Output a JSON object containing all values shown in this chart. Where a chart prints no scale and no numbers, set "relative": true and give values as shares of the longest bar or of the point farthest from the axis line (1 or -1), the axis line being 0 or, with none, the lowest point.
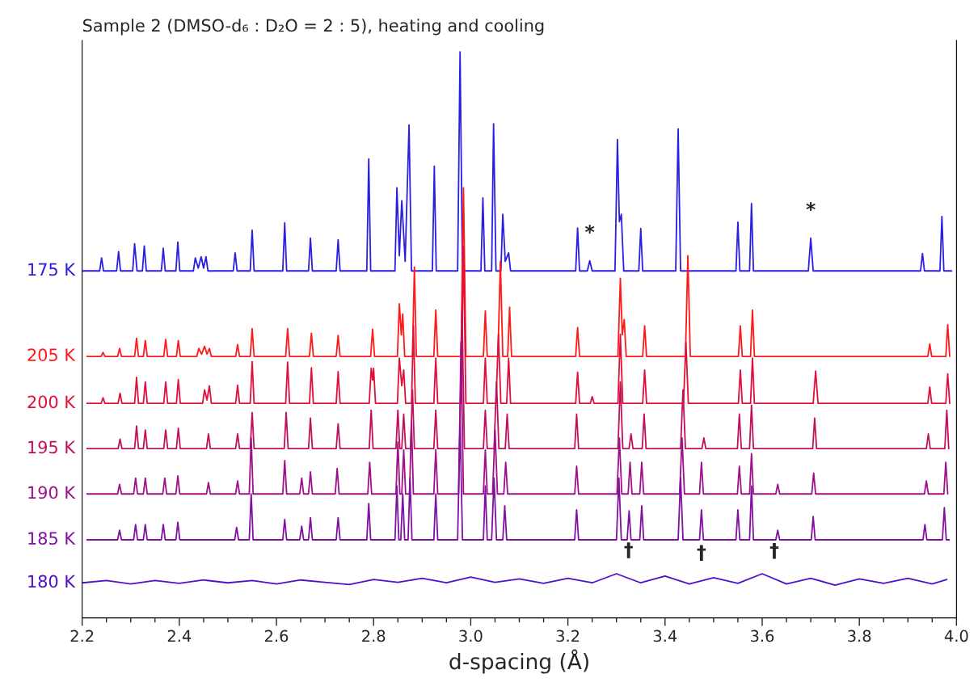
{
  "chart_data": {
    "type": "line",
    "relative": true,
    "title": "Sample 2 (DMSO-d₆ : D₂O = 2 : 5), heating and cooling",
    "xlabel": "d-spacing (Å)",
    "xlim": [
      2.2,
      4.0
    ],
    "xticks": [
      2.2,
      2.4,
      2.6,
      2.8,
      {
        "value": 3,
        "label": "3.0"
      },
      3.2,
      3.4,
      3.6,
      3.8,
      {
        "value": 4,
        "label": "4.0"
      },
      {
        "value": 2.25,
        "label": null
      },
      {
        "value": 2.3,
        "label": null
      },
      {
        "value": 2.35,
        "label": null
      },
      {
        "value": 2.45,
        "label": null
      },
      {
        "value": 2.5,
        "label": null
      },
      {
        "value": 2.55,
        "label": null
      },
      {
        "value": 2.65,
        "label": null
      },
      {
        "value": 2.7,
        "label": null
      },
      {
        "value": 2.75,
        "label": null
      },
      {
        "value": 2.85,
        "label": null
      },
      {
        "value": 2.9,
        "label": null
      },
      {
        "value": 2.95,
        "label": null
      },
      {
        "value": 3.05,
        "label": null
      },
      {
        "value": 3.1,
        "label": null
      },
      {
        "value": 3.15,
        "label": null
      },
      {
        "value": 3.25,
        "label": null
      },
      {
        "value": 3.3,
        "label": null
      },
      {
        "value": 3.35,
        "label": null
      },
      {
        "value": 3.45,
        "label": null
      },
      {
        "value": 3.5,
        "label": null
      },
      {
        "value": 3.55,
        "label": null
      },
      {
        "value": 3.65,
        "label": null
      },
      {
        "value": 3.7,
        "label": null
      },
      {
        "value": 3.75,
        "label": null
      },
      {
        "value": 3.85,
        "label": null
      },
      {
        "value": 3.9,
        "label": null
      },
      {
        "value": 3.95,
        "label": null
      }
    ],
    "series": [
      {
        "name": "175 K",
        "color": "#2a1fe0",
        "x": [
          2.2,
          2.236,
          2.24,
          2.244,
          2.271,
          2.275,
          2.279,
          2.304,
          2.308,
          2.313,
          2.324,
          2.328,
          2.332,
          2.363,
          2.367,
          2.371,
          2.393,
          2.397,
          2.401,
          2.429,
          2.433,
          2.439,
          2.445,
          2.45,
          2.455,
          2.459,
          2.511,
          2.515,
          2.519,
          2.546,
          2.55,
          2.554,
          2.613,
          2.617,
          2.621,
          2.666,
          2.67,
          2.674,
          2.723,
          2.727,
          2.731,
          2.786,
          2.79,
          2.794,
          2.844,
          2.848,
          2.853,
          2.858,
          2.865,
          2.873,
          2.878,
          2.921,
          2.925,
          2.929,
          2.973,
          2.978,
          2.983,
          3.021,
          3.025,
          3.029,
          3.043,
          3.047,
          3.052,
          3.062,
          3.066,
          3.071,
          3.078,
          3.082,
          3.216,
          3.22,
          3.224,
          3.24,
          3.245,
          3.25,
          3.297,
          3.302,
          3.306,
          3.31,
          3.315,
          3.346,
          3.35,
          3.354,
          3.422,
          3.427,
          3.432,
          3.546,
          3.55,
          3.554,
          3.574,
          3.578,
          3.582,
          3.695,
          3.7,
          3.705,
          3.926,
          3.93,
          3.934,
          3.966,
          3.97,
          3.974,
          3.99
        ],
        "values": [
          0.613,
          0.613,
          0.636,
          0.613,
          0.613,
          0.647,
          0.613,
          0.613,
          0.661,
          0.613,
          0.613,
          0.657,
          0.613,
          0.613,
          0.653,
          0.613,
          0.613,
          0.664,
          0.613,
          0.613,
          0.636,
          0.618,
          0.638,
          0.618,
          0.638,
          0.613,
          0.613,
          0.645,
          0.613,
          0.613,
          0.685,
          0.613,
          0.613,
          0.698,
          0.613,
          0.613,
          0.671,
          0.613,
          0.613,
          0.668,
          0.613,
          0.613,
          0.811,
          0.613,
          0.613,
          0.76,
          0.64,
          0.737,
          0.63,
          0.871,
          0.613,
          0.613,
          0.798,
          0.613,
          0.613,
          1.0,
          0.613,
          0.613,
          0.742,
          0.613,
          0.613,
          0.873,
          0.613,
          0.613,
          0.713,
          0.63,
          0.645,
          0.613,
          0.613,
          0.689,
          0.613,
          0.613,
          0.631,
          0.613,
          0.613,
          0.845,
          0.7,
          0.713,
          0.613,
          0.613,
          0.688,
          0.613,
          0.613,
          0.864,
          0.613,
          0.613,
          0.699,
          0.613,
          0.613,
          0.732,
          0.613,
          0.613,
          0.671,
          0.613,
          0.613,
          0.644,
          0.613,
          0.613,
          0.709,
          0.613,
          0.613
        ]
      },
      {
        "name": "205 K",
        "color": "#ff1a1a",
        "x": [
          2.21,
          2.239,
          2.243,
          2.247,
          2.273,
          2.277,
          2.281,
          2.308,
          2.312,
          2.316,
          2.326,
          2.33,
          2.334,
          2.368,
          2.372,
          2.376,
          2.394,
          2.398,
          2.402,
          2.436,
          2.44,
          2.446,
          2.452,
          2.457,
          2.462,
          2.466,
          2.516,
          2.52,
          2.524,
          2.546,
          2.55,
          2.554,
          2.619,
          2.623,
          2.627,
          2.668,
          2.672,
          2.676,
          2.723,
          2.727,
          2.731,
          2.794,
          2.798,
          2.802,
          2.849,
          2.853,
          2.857,
          2.86,
          2.864,
          2.88,
          2.884,
          2.888,
          2.924,
          2.928,
          2.932,
          2.98,
          2.985,
          2.99,
          3.026,
          3.03,
          3.034,
          3.056,
          3.061,
          3.066,
          3.076,
          3.08,
          3.084,
          3.216,
          3.22,
          3.224,
          3.303,
          3.308,
          3.312,
          3.316,
          3.32,
          3.354,
          3.358,
          3.362,
          3.442,
          3.447,
          3.452,
          3.551,
          3.555,
          3.559,
          3.576,
          3.58,
          3.584,
          3.941,
          3.945,
          3.949,
          3.978,
          3.982,
          3.986
        ],
        "values": [
          0.462,
          0.462,
          0.469,
          0.462,
          0.462,
          0.476,
          0.462,
          0.462,
          0.494,
          0.462,
          0.462,
          0.49,
          0.462,
          0.462,
          0.492,
          0.462,
          0.462,
          0.49,
          0.462,
          0.462,
          0.476,
          0.466,
          0.48,
          0.466,
          0.476,
          0.462,
          0.462,
          0.483,
          0.462,
          0.462,
          0.511,
          0.462,
          0.462,
          0.511,
          0.462,
          0.462,
          0.503,
          0.462,
          0.462,
          0.499,
          0.462,
          0.462,
          0.51,
          0.462,
          0.462,
          0.555,
          0.5,
          0.537,
          0.462,
          0.462,
          0.62,
          0.462,
          0.462,
          0.544,
          0.462,
          0.462,
          0.76,
          0.462,
          0.462,
          0.542,
          0.462,
          0.462,
          0.63,
          0.462,
          0.462,
          0.549,
          0.462,
          0.462,
          0.513,
          0.462,
          0.462,
          0.6,
          0.5,
          0.527,
          0.462,
          0.462,
          0.516,
          0.462,
          0.462,
          0.64,
          0.462,
          0.462,
          0.516,
          0.462,
          0.462,
          0.544,
          0.462,
          0.462,
          0.484,
          0.462,
          0.462,
          0.518,
          0.462
        ]
      },
      {
        "name": "200 K",
        "color": "#e0103a",
        "x": [
          2.21,
          2.239,
          2.243,
          2.247,
          2.274,
          2.278,
          2.282,
          2.308,
          2.312,
          2.316,
          2.326,
          2.33,
          2.334,
          2.368,
          2.372,
          2.376,
          2.394,
          2.398,
          2.402,
          2.448,
          2.452,
          2.457,
          2.462,
          2.466,
          2.516,
          2.52,
          2.524,
          2.546,
          2.55,
          2.554,
          2.619,
          2.623,
          2.627,
          2.668,
          2.672,
          2.676,
          2.723,
          2.727,
          2.731,
          2.791,
          2.795,
          2.798,
          2.8,
          2.804,
          2.849,
          2.853,
          2.858,
          2.862,
          2.866,
          2.878,
          2.882,
          2.886,
          2.924,
          2.928,
          2.932,
          2.98,
          2.985,
          2.99,
          3.026,
          3.03,
          3.034,
          3.052,
          3.057,
          3.062,
          3.074,
          3.078,
          3.082,
          3.216,
          3.22,
          3.224,
          3.246,
          3.25,
          3.254,
          3.303,
          3.308,
          3.313,
          3.354,
          3.358,
          3.362,
          3.438,
          3.443,
          3.448,
          3.551,
          3.555,
          3.559,
          3.576,
          3.58,
          3.584,
          3.705,
          3.71,
          3.715,
          3.941,
          3.945,
          3.949,
          3.978,
          3.982,
          3.986
        ],
        "values": [
          0.379,
          0.379,
          0.389,
          0.379,
          0.379,
          0.397,
          0.379,
          0.379,
          0.425,
          0.379,
          0.379,
          0.417,
          0.379,
          0.379,
          0.417,
          0.379,
          0.379,
          0.421,
          0.379,
          0.379,
          0.403,
          0.385,
          0.41,
          0.379,
          0.379,
          0.411,
          0.379,
          0.379,
          0.453,
          0.379,
          0.379,
          0.452,
          0.379,
          0.379,
          0.442,
          0.379,
          0.379,
          0.435,
          0.379,
          0.379,
          0.441,
          0.42,
          0.441,
          0.379,
          0.379,
          0.459,
          0.41,
          0.438,
          0.379,
          0.379,
          0.516,
          0.379,
          0.379,
          0.459,
          0.379,
          0.379,
          0.657,
          0.379,
          0.379,
          0.459,
          0.379,
          0.379,
          0.501,
          0.379,
          0.379,
          0.459,
          0.379,
          0.379,
          0.434,
          0.379,
          0.379,
          0.391,
          0.379,
          0.379,
          0.501,
          0.379,
          0.379,
          0.438,
          0.379,
          0.379,
          0.487,
          0.379,
          0.379,
          0.438,
          0.379,
          0.379,
          0.459,
          0.379,
          0.379,
          0.436,
          0.379,
          0.379,
          0.408,
          0.379,
          0.379,
          0.431,
          0.379
        ]
      },
      {
        "name": "195 K",
        "color": "#c0105a",
        "x": [
          2.21,
          2.274,
          2.278,
          2.282,
          2.308,
          2.312,
          2.316,
          2.326,
          2.33,
          2.334,
          2.368,
          2.372,
          2.376,
          2.394,
          2.398,
          2.402,
          2.456,
          2.46,
          2.464,
          2.516,
          2.52,
          2.524,
          2.546,
          2.55,
          2.554,
          2.616,
          2.62,
          2.624,
          2.666,
          2.67,
          2.674,
          2.723,
          2.727,
          2.731,
          2.791,
          2.795,
          2.799,
          2.846,
          2.85,
          2.854,
          2.858,
          2.862,
          2.866,
          2.876,
          2.88,
          2.884,
          2.924,
          2.928,
          2.932,
          2.977,
          2.982,
          2.987,
          3.026,
          3.03,
          3.034,
          3.048,
          3.053,
          3.058,
          3.071,
          3.075,
          3.079,
          3.214,
          3.218,
          3.222,
          3.303,
          3.308,
          3.313,
          3.326,
          3.33,
          3.334,
          3.353,
          3.357,
          3.361,
          3.432,
          3.437,
          3.442,
          3.476,
          3.48,
          3.484,
          3.549,
          3.553,
          3.557,
          3.574,
          3.578,
          3.582,
          3.704,
          3.708,
          3.712,
          3.938,
          3.942,
          3.946,
          3.976,
          3.98,
          3.984
        ],
        "values": [
          0.299,
          0.299,
          0.316,
          0.299,
          0.299,
          0.339,
          0.299,
          0.299,
          0.332,
          0.299,
          0.299,
          0.332,
          0.299,
          0.299,
          0.335,
          0.299,
          0.299,
          0.325,
          0.299,
          0.299,
          0.325,
          0.299,
          0.299,
          0.363,
          0.299,
          0.299,
          0.363,
          0.299,
          0.299,
          0.353,
          0.299,
          0.299,
          0.343,
          0.299,
          0.299,
          0.367,
          0.299,
          0.299,
          0.367,
          0.299,
          0.299,
          0.36,
          0.299,
          0.299,
          0.403,
          0.299,
          0.299,
          0.367,
          0.299,
          0.299,
          0.544,
          0.299,
          0.299,
          0.367,
          0.299,
          0.299,
          0.417,
          0.299,
          0.299,
          0.36,
          0.299,
          0.299,
          0.36,
          0.299,
          0.299,
          0.417,
          0.299,
          0.299,
          0.325,
          0.299,
          0.299,
          0.36,
          0.299,
          0.299,
          0.403,
          0.299,
          0.299,
          0.318,
          0.299,
          0.299,
          0.36,
          0.299,
          0.299,
          0.376,
          0.299,
          0.299,
          0.353,
          0.299,
          0.299,
          0.325,
          0.299,
          0.299,
          0.367,
          0.299
        ]
      },
      {
        "name": "190 K",
        "color": "#a0108a",
        "x": [
          2.21,
          2.273,
          2.277,
          2.281,
          2.306,
          2.31,
          2.314,
          2.326,
          2.33,
          2.334,
          2.366,
          2.37,
          2.374,
          2.393,
          2.397,
          2.401,
          2.456,
          2.46,
          2.464,
          2.516,
          2.52,
          2.524,
          2.544,
          2.548,
          2.552,
          2.613,
          2.617,
          2.621,
          2.648,
          2.652,
          2.656,
          2.666,
          2.67,
          2.674,
          2.721,
          2.725,
          2.729,
          2.788,
          2.792,
          2.796,
          2.846,
          2.85,
          2.854,
          2.858,
          2.862,
          2.866,
          2.874,
          2.878,
          2.882,
          2.924,
          2.928,
          2.932,
          2.975,
          2.98,
          2.985,
          3.026,
          3.03,
          3.034,
          3.045,
          3.05,
          3.055,
          3.068,
          3.072,
          3.076,
          3.214,
          3.218,
          3.222,
          3.301,
          3.306,
          3.311,
          3.324,
          3.328,
          3.332,
          3.348,
          3.352,
          3.356,
          3.43,
          3.435,
          3.44,
          3.471,
          3.475,
          3.479,
          3.549,
          3.553,
          3.557,
          3.574,
          3.578,
          3.582,
          3.628,
          3.632,
          3.636,
          3.702,
          3.706,
          3.71,
          3.934,
          3.938,
          3.942,
          3.974,
          3.978,
          3.982
        ],
        "values": [
          0.219,
          0.219,
          0.236,
          0.219,
          0.219,
          0.247,
          0.219,
          0.219,
          0.247,
          0.219,
          0.219,
          0.247,
          0.219,
          0.219,
          0.251,
          0.219,
          0.219,
          0.239,
          0.219,
          0.219,
          0.242,
          0.219,
          0.219,
          0.318,
          0.219,
          0.219,
          0.278,
          0.219,
          0.219,
          0.247,
          0.219,
          0.219,
          0.258,
          0.219,
          0.219,
          0.264,
          0.219,
          0.219,
          0.275,
          0.219,
          0.219,
          0.311,
          0.219,
          0.219,
          0.297,
          0.219,
          0.219,
          0.346,
          0.219,
          0.219,
          0.297,
          0.219,
          0.219,
          0.487,
          0.219,
          0.219,
          0.297,
          0.219,
          0.219,
          0.332,
          0.219,
          0.219,
          0.275,
          0.219,
          0.219,
          0.268,
          0.219,
          0.219,
          0.318,
          0.219,
          0.219,
          0.275,
          0.219,
          0.219,
          0.275,
          0.219,
          0.219,
          0.318,
          0.219,
          0.219,
          0.275,
          0.219,
          0.219,
          0.268,
          0.219,
          0.219,
          0.29,
          0.219,
          0.219,
          0.236,
          0.219,
          0.219,
          0.256,
          0.219,
          0.219,
          0.242,
          0.219,
          0.219,
          0.275,
          0.219
        ]
      },
      {
        "name": "185 K",
        "color": "#8010a0",
        "x": [
          2.21,
          2.273,
          2.277,
          2.281,
          2.306,
          2.31,
          2.314,
          2.326,
          2.33,
          2.334,
          2.363,
          2.367,
          2.371,
          2.393,
          2.397,
          2.401,
          2.514,
          2.518,
          2.522,
          2.544,
          2.548,
          2.552,
          2.613,
          2.617,
          2.621,
          2.648,
          2.652,
          2.656,
          2.666,
          2.67,
          2.674,
          2.723,
          2.727,
          2.731,
          2.786,
          2.79,
          2.794,
          2.844,
          2.848,
          2.852,
          2.856,
          2.86,
          2.864,
          2.871,
          2.875,
          2.879,
          2.924,
          2.928,
          2.932,
          2.973,
          2.978,
          2.983,
          3.026,
          3.03,
          3.034,
          3.043,
          3.048,
          3.053,
          3.066,
          3.07,
          3.074,
          3.214,
          3.218,
          3.222,
          3.3,
          3.305,
          3.31,
          3.322,
          3.326,
          3.33,
          3.348,
          3.352,
          3.356,
          3.427,
          3.432,
          3.437,
          3.471,
          3.475,
          3.479,
          3.546,
          3.55,
          3.554,
          3.574,
          3.578,
          3.582,
          3.628,
          3.632,
          3.636,
          3.701,
          3.705,
          3.709,
          3.931,
          3.935,
          3.939,
          3.971,
          3.975,
          3.979,
          3.985
        ],
        "values": [
          0.138,
          0.138,
          0.155,
          0.138,
          0.138,
          0.165,
          0.138,
          0.138,
          0.165,
          0.138,
          0.138,
          0.165,
          0.138,
          0.138,
          0.169,
          0.138,
          0.138,
          0.16,
          0.138,
          0.138,
          0.219,
          0.138,
          0.138,
          0.174,
          0.138,
          0.138,
          0.162,
          0.138,
          0.138,
          0.177,
          0.138,
          0.138,
          0.177,
          0.138,
          0.138,
          0.202,
          0.138,
          0.138,
          0.233,
          0.138,
          0.138,
          0.219,
          0.138,
          0.138,
          0.247,
          0.138,
          0.138,
          0.219,
          0.138,
          0.138,
          0.346,
          0.138,
          0.138,
          0.233,
          0.138,
          0.138,
          0.247,
          0.138,
          0.138,
          0.198,
          0.138,
          0.138,
          0.191,
          0.138,
          0.138,
          0.247,
          0.138,
          0.138,
          0.189,
          0.138,
          0.138,
          0.198,
          0.138,
          0.138,
          0.247,
          0.138,
          0.138,
          0.191,
          0.138,
          0.138,
          0.191,
          0.138,
          0.138,
          0.233,
          0.138,
          0.138,
          0.155,
          0.138,
          0.138,
          0.179,
          0.138,
          0.138,
          0.165,
          0.138,
          0.138,
          0.195,
          0.138,
          0.138
        ]
      },
      {
        "name": "180 K",
        "color": "#5010c8",
        "x": [
          2.2,
          2.25,
          2.3,
          2.35,
          2.4,
          2.45,
          2.5,
          2.55,
          2.6,
          2.65,
          2.7,
          2.75,
          2.8,
          2.85,
          2.9,
          2.95,
          3.0,
          3.05,
          3.1,
          3.15,
          3.2,
          3.25,
          3.3,
          3.35,
          3.4,
          3.45,
          3.5,
          3.55,
          3.6,
          3.65,
          3.7,
          3.75,
          3.8,
          3.85,
          3.9,
          3.95,
          3.98
        ],
        "values": [
          0.062,
          0.066,
          0.06,
          0.066,
          0.061,
          0.067,
          0.062,
          0.066,
          0.06,
          0.067,
          0.063,
          0.059,
          0.068,
          0.063,
          0.07,
          0.062,
          0.072,
          0.063,
          0.069,
          0.061,
          0.07,
          0.062,
          0.078,
          0.062,
          0.074,
          0.06,
          0.071,
          0.061,
          0.078,
          0.06,
          0.07,
          0.058,
          0.069,
          0.061,
          0.07,
          0.06,
          0.068
        ]
      }
    ],
    "annotations": [
      {
        "text": "*",
        "x": 3.245,
        "y": 0.631
      },
      {
        "text": "*",
        "x": 3.7,
        "y": 0.671
      },
      {
        "text": "†",
        "x": 3.325,
        "y": 0.07
      },
      {
        "text": "†",
        "x": 3.475,
        "y": 0.0655
      },
      {
        "text": "†",
        "x": 3.625,
        "y": 0.069
      }
    ]
  }
}
